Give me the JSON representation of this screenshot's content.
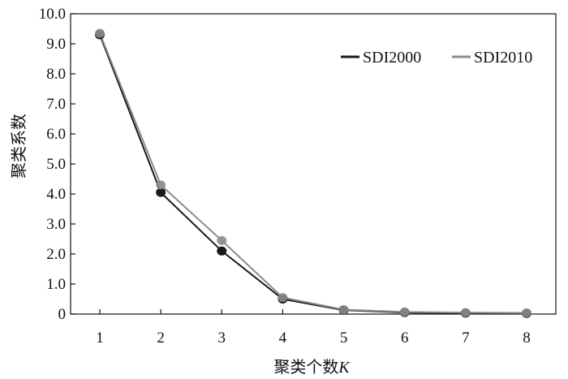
{
  "chart_data": {
    "type": "line",
    "title": "",
    "xlabel": "聚类个数",
    "xlabel_italic": "K",
    "ylabel": "聚类系数",
    "x": [
      1,
      2,
      3,
      4,
      5,
      6,
      7,
      8
    ],
    "x_tick_labels": [
      "1",
      "2",
      "3",
      "4",
      "5",
      "6",
      "7",
      "8"
    ],
    "xlim": [
      1,
      8
    ],
    "ylim": [
      0,
      10
    ],
    "y_ticks": [
      0,
      1,
      2,
      3,
      4,
      5,
      6,
      7,
      8,
      9,
      10
    ],
    "y_tick_labels": [
      "0",
      "1.0",
      "2.0",
      "3.0",
      "4.0",
      "5.0",
      "6.0",
      "7.0",
      "8.0",
      "9.0",
      "10.0"
    ],
    "grid": false,
    "legend_position": "top-right",
    "series": [
      {
        "name": "SDI2000",
        "color": "#1a1a1a",
        "values": [
          9.3,
          4.05,
          2.1,
          0.5,
          0.13,
          0.05,
          0.03,
          0.02
        ]
      },
      {
        "name": "SDI2010",
        "color": "#8c8c8c",
        "values": [
          9.35,
          4.3,
          2.45,
          0.55,
          0.15,
          0.07,
          0.05,
          0.04
        ]
      }
    ]
  }
}
